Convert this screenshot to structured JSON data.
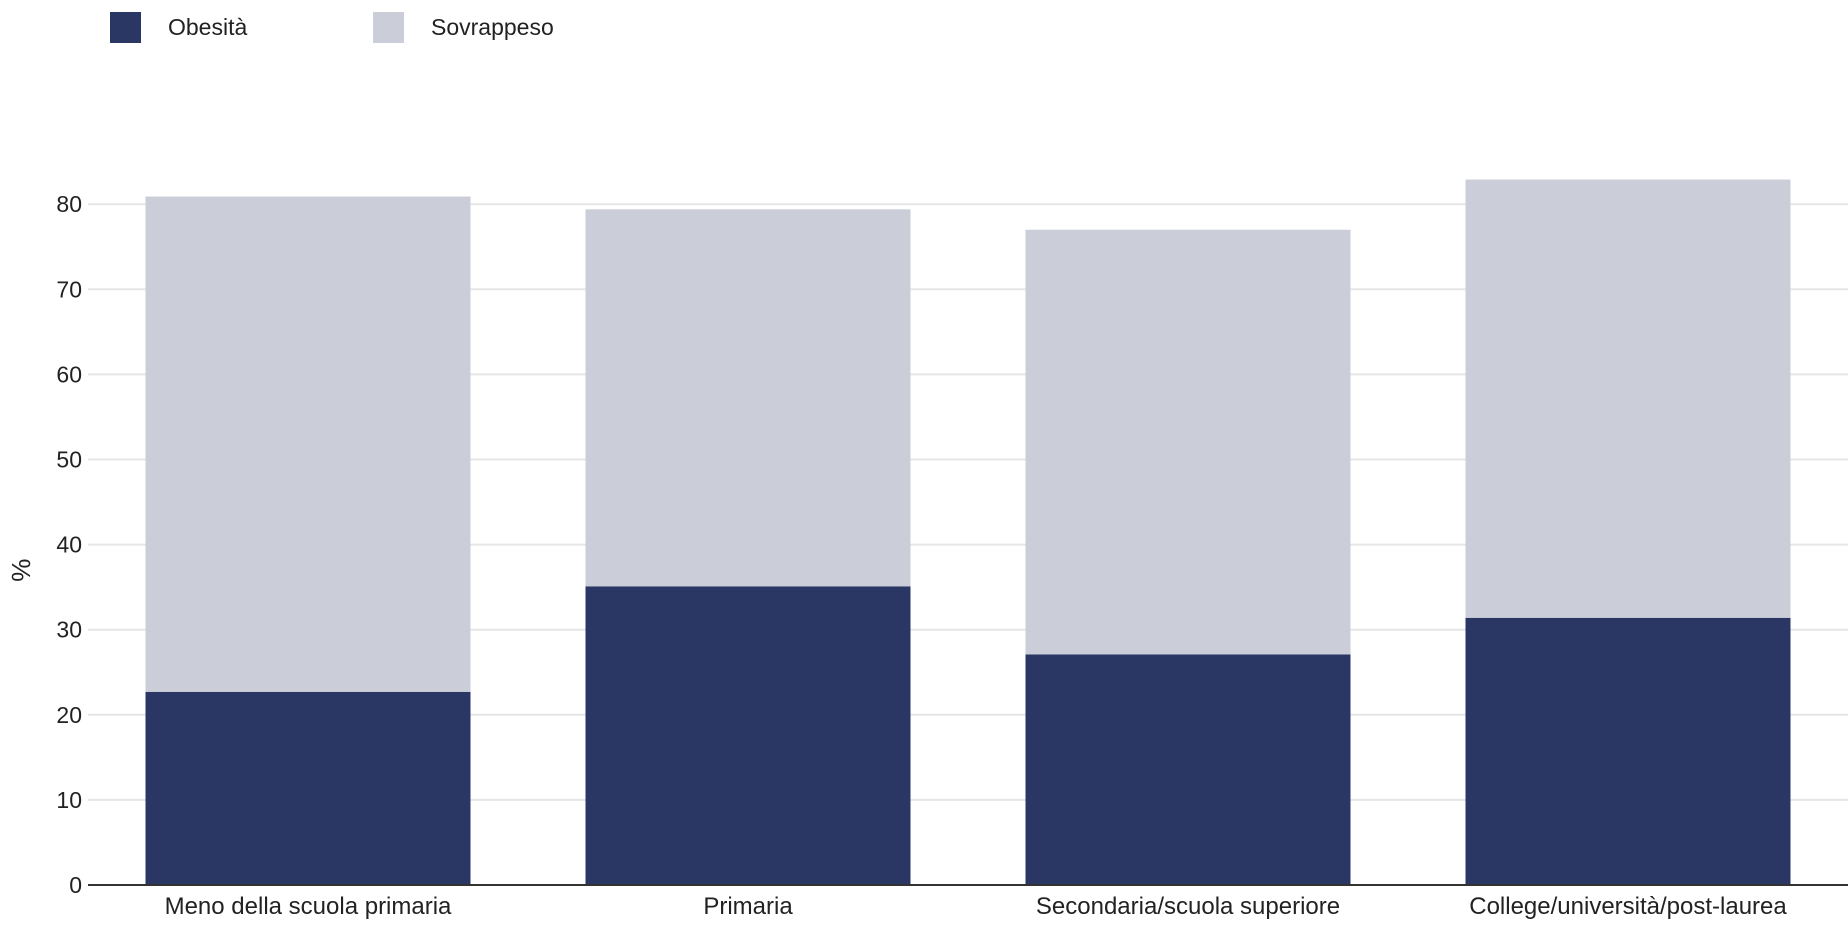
{
  "chart_data": {
    "type": "bar",
    "stacked": true,
    "categories": [
      "Meno della scuola primaria",
      "Primaria",
      "Secondaria/scuola superiore",
      "College/università/post-laurea"
    ],
    "series": [
      {
        "name": "Obesità",
        "color": "#2a3764",
        "values": [
          22.7,
          35.1,
          27.1,
          31.4
        ]
      },
      {
        "name": "Sovrappeso",
        "color": "#cbcdd9",
        "values": [
          58.2,
          44.3,
          49.9,
          51.5
        ]
      }
    ],
    "ylabel": "%",
    "ylim": [
      0,
      90
    ],
    "yticks": [
      0,
      10,
      20,
      30,
      40,
      50,
      60,
      70,
      80
    ],
    "grid": true,
    "legend_position": "top-left"
  }
}
